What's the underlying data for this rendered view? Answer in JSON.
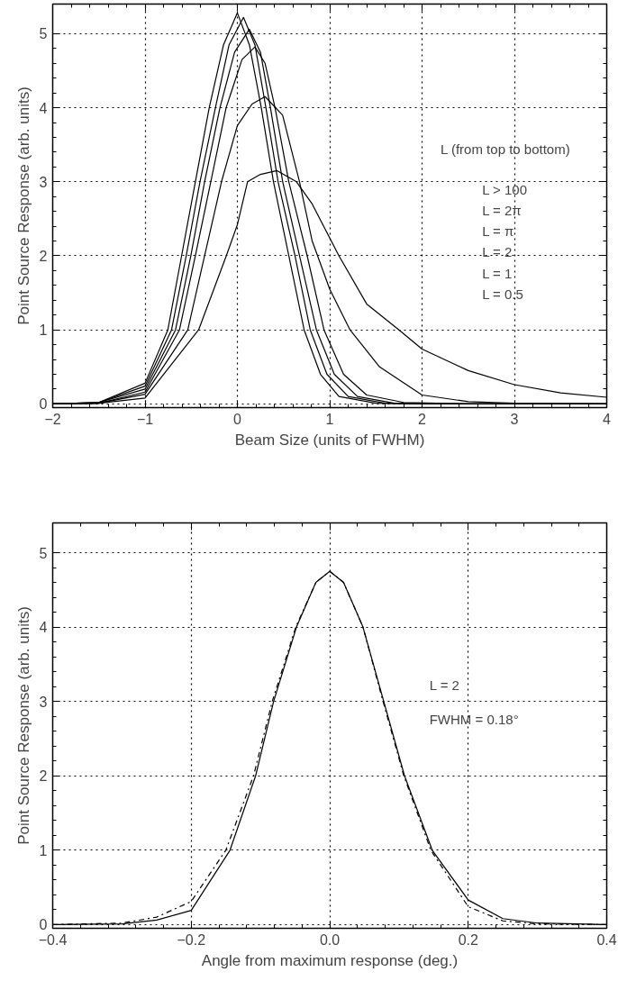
{
  "chart_data": [
    {
      "type": "line",
      "xlabel": "Beam Size (units of FWHM)",
      "ylabel": "Point Source Response (arb. units)",
      "xlim": [
        -2,
        4
      ],
      "ylim": [
        -0.05,
        5.4
      ],
      "xticks": [
        -2,
        -1,
        0,
        1,
        2,
        3,
        4
      ],
      "yticks": [
        0,
        1,
        2,
        3,
        4,
        5
      ],
      "grid": true,
      "line_style": "solid",
      "annotations": [
        "L (from top to bottom)",
        "L > 100",
        "L = 2π",
        "L = π",
        "L = 2",
        "L = 1",
        "L = 0.5"
      ],
      "series": [
        {
          "color": "#000000",
          "x": [
            -2,
            -1.5,
            -1,
            -0.753,
            -0.604,
            -0.455,
            -0.305,
            -0.15,
            0,
            0.13,
            0.259,
            0.391,
            0.557,
            0.723,
            0.9,
            1.1,
            1.5,
            2,
            4
          ],
          "values": [
            0,
            0.02,
            0.28,
            1,
            2,
            3,
            4,
            4.85,
            5.28,
            4.85,
            4,
            3,
            2,
            1,
            0.4,
            0.1,
            0.01,
            0,
            0
          ]
        },
        {
          "color": "#000000",
          "x": [
            -2,
            -1.5,
            -1,
            -0.713,
            -0.554,
            -0.405,
            -0.238,
            -0.09,
            0.066,
            0.19,
            0.309,
            0.441,
            0.624,
            0.789,
            0.97,
            1.2,
            1.6,
            2.2,
            4
          ],
          "values": [
            0,
            0.02,
            0.24,
            1,
            2,
            3,
            4,
            4.85,
            5.22,
            4.85,
            4,
            3,
            2,
            1,
            0.4,
            0.1,
            0.01,
            0,
            0
          ]
        },
        {
          "color": "#000000",
          "x": [
            -2,
            -1.5,
            -1,
            -0.67,
            -0.504,
            -0.355,
            -0.189,
            -0.03,
            0.13,
            0.25,
            0.358,
            0.491,
            0.673,
            0.856,
            1.05,
            1.3,
            1.7,
            2.4,
            4
          ],
          "values": [
            0,
            0.02,
            0.2,
            1,
            2,
            3,
            4,
            4.75,
            5.06,
            4.75,
            4,
            3,
            2,
            1,
            0.4,
            0.1,
            0.01,
            0,
            0
          ]
        },
        {
          "color": "#000000",
          "x": [
            -2,
            -1.5,
            -1,
            -0.627,
            -0.455,
            -0.288,
            -0.122,
            0.05,
            0.19,
            0.3,
            0.408,
            0.557,
            0.756,
            0.938,
            1.15,
            1.4,
            1.8,
            2.5,
            4
          ],
          "values": [
            0,
            0.01,
            0.16,
            1,
            2,
            3,
            4,
            4.65,
            4.82,
            4.6,
            4,
            3,
            2,
            1,
            0.4,
            0.12,
            0.02,
            0,
            0
          ]
        },
        {
          "color": "#000000",
          "x": [
            -2,
            -1.5,
            -1,
            -0.537,
            -0.355,
            -0.172,
            0,
            0.159,
            0.3,
            0.49,
            0.673,
            0.81,
            1,
            1.22,
            1.54,
            2,
            2.5,
            3,
            4
          ],
          "values": [
            0,
            0.01,
            0.13,
            1,
            2,
            3,
            3.76,
            4.05,
            4.15,
            3.9,
            3,
            2.2,
            1.55,
            1,
            0.5,
            0.12,
            0.03,
            0.01,
            0
          ]
        },
        {
          "color": "#000000",
          "x": [
            -2,
            -1.5,
            -1,
            -0.42,
            -0.12,
            0,
            0.11,
            0.25,
            0.43,
            0.64,
            0.81,
            1.1,
            1.4,
            1.75,
            2,
            2.5,
            3,
            3.5,
            4
          ],
          "values": [
            0,
            0.01,
            0.08,
            1,
            2,
            2.42,
            3,
            3.1,
            3.15,
            3,
            2.7,
            2,
            1.35,
            1,
            0.74,
            0.45,
            0.26,
            0.15,
            0.09
          ]
        }
      ]
    },
    {
      "type": "line",
      "xlabel": "Angle from maximum response (deg.)",
      "ylabel": "Point Source Response (arb. units)",
      "xlim": [
        -0.4,
        0.4
      ],
      "ylim": [
        -0.05,
        5.4
      ],
      "xticks": [
        {
          "value": -0.4,
          "label": "−0.4"
        },
        {
          "value": -0.2,
          "label": "−0.2"
        },
        {
          "value": 0,
          "label": "0.0"
        },
        {
          "value": 0.2,
          "label": "0.2"
        },
        {
          "value": 0.4,
          "label": "0.4"
        }
      ],
      "yticks": [
        0,
        1,
        2,
        3,
        4,
        5
      ],
      "grid": true,
      "annotations": [
        "L = 2",
        "FWHM = 0.18°"
      ],
      "series": [
        {
          "color": "#000000",
          "line_style": "solid",
          "x": [
            -0.4,
            -0.3,
            -0.25,
            -0.2,
            -0.144,
            -0.107,
            -0.081,
            -0.048,
            -0.02,
            0,
            0.02,
            0.048,
            0.078,
            0.108,
            0.148,
            0.2,
            0.25,
            0.3,
            0.4
          ],
          "values": [
            0,
            0.01,
            0.06,
            0.19,
            1,
            2,
            3,
            4,
            4.6,
            4.75,
            4.6,
            4,
            3,
            2,
            1,
            0.33,
            0.08,
            0.02,
            0
          ]
        },
        {
          "color": "#000000",
          "line_style": "dashdot",
          "x": [
            -0.4,
            -0.3,
            -0.25,
            -0.2,
            -0.15,
            -0.11,
            -0.083,
            -0.049,
            -0.02,
            0,
            0.02,
            0.048,
            0.077,
            0.107,
            0.146,
            0.2,
            0.25,
            0.3,
            0.4
          ],
          "values": [
            0,
            0.02,
            0.1,
            0.31,
            1,
            2,
            3,
            4,
            4.6,
            4.75,
            4.6,
            4,
            3,
            2,
            1,
            0.24,
            0.05,
            0.01,
            0
          ]
        }
      ]
    }
  ]
}
